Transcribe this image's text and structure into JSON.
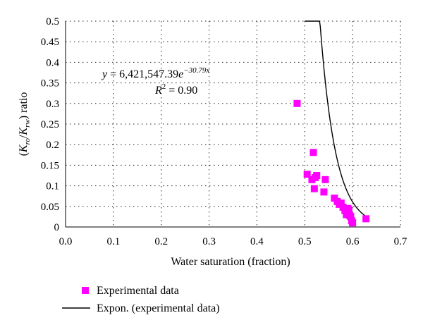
{
  "chart_data": {
    "type": "scatter",
    "xlabel": "Water saturation (fraction)",
    "ylabel_parts": [
      "(",
      "K",
      "ro",
      "/",
      "K",
      "rw",
      ") ratio"
    ],
    "xlim": [
      0,
      0.7
    ],
    "ylim": [
      0,
      0.5
    ],
    "x_ticks": [
      "0.0",
      "0.1",
      "0.2",
      "0.3",
      "0.4",
      "0.5",
      "0.6",
      "0.7"
    ],
    "y_ticks": [
      "0",
      "0.05",
      "0.1",
      "0.15",
      "0.2",
      "0.25",
      "0.3",
      "0.35",
      "0.4",
      "0.45",
      "0.5"
    ],
    "grid": true,
    "series": [
      {
        "name": "Experimental data",
        "marker": "square",
        "color": "#ff00ff",
        "x": [
          0.484,
          0.505,
          0.515,
          0.518,
          0.52,
          0.522,
          0.525,
          0.54,
          0.543,
          0.562,
          0.568,
          0.572,
          0.576,
          0.58,
          0.584,
          0.587,
          0.59,
          0.592,
          0.594,
          0.596,
          0.598,
          0.6,
          0.628
        ],
        "y": [
          0.3,
          0.128,
          0.115,
          0.181,
          0.093,
          0.12,
          0.125,
          0.085,
          0.115,
          0.07,
          0.062,
          0.055,
          0.058,
          0.048,
          0.04,
          0.03,
          0.045,
          0.042,
          0.028,
          0.025,
          0.015,
          0.01,
          0.02
        ]
      },
      {
        "name": "Expon. (experimental data)",
        "type": "line",
        "color": "#000000",
        "fit": {
          "a": 6421547.39,
          "b": -30.79
        },
        "x_range": [
          0.5,
          0.63
        ]
      }
    ],
    "annotation": {
      "eq_lhs": "y",
      "eq_rhs_before": " = 6,421,547.39",
      "eq_base": "e",
      "eq_exp": "−30.79x",
      "r2_lhs": "R",
      "r2_sup": "2",
      "r2_rhs": " = 0.90"
    },
    "legend_position": "bottom-left"
  }
}
